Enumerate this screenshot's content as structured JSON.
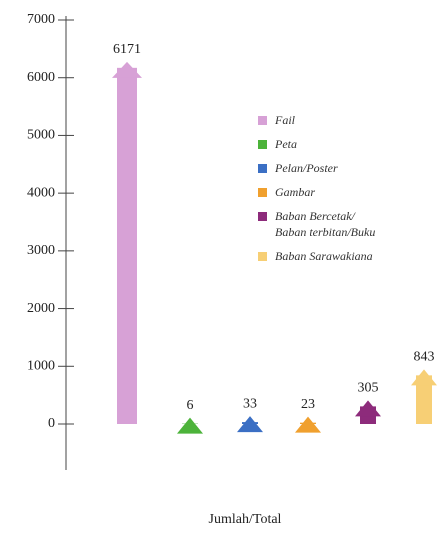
{
  "chart_data": {
    "type": "bar",
    "x_label": "Jumlah/Total",
    "categories": [
      "Fail",
      "Peta",
      "Pelan/Poster",
      "Gambar",
      "Baban Bercetak/ Baban terbitan/Buku",
      "Baban Sarawakiana"
    ],
    "values": [
      6171,
      6,
      33,
      23,
      305,
      843
    ],
    "colors": [
      "#d7a1d6",
      "#4cb33a",
      "#3b6fc4",
      "#f0a02e",
      "#8d2b7b",
      "#f7cf75"
    ],
    "ylim": [
      0,
      7000
    ],
    "yticks": [
      0,
      1000,
      2000,
      3000,
      4000,
      5000,
      6000,
      7000
    ]
  }
}
